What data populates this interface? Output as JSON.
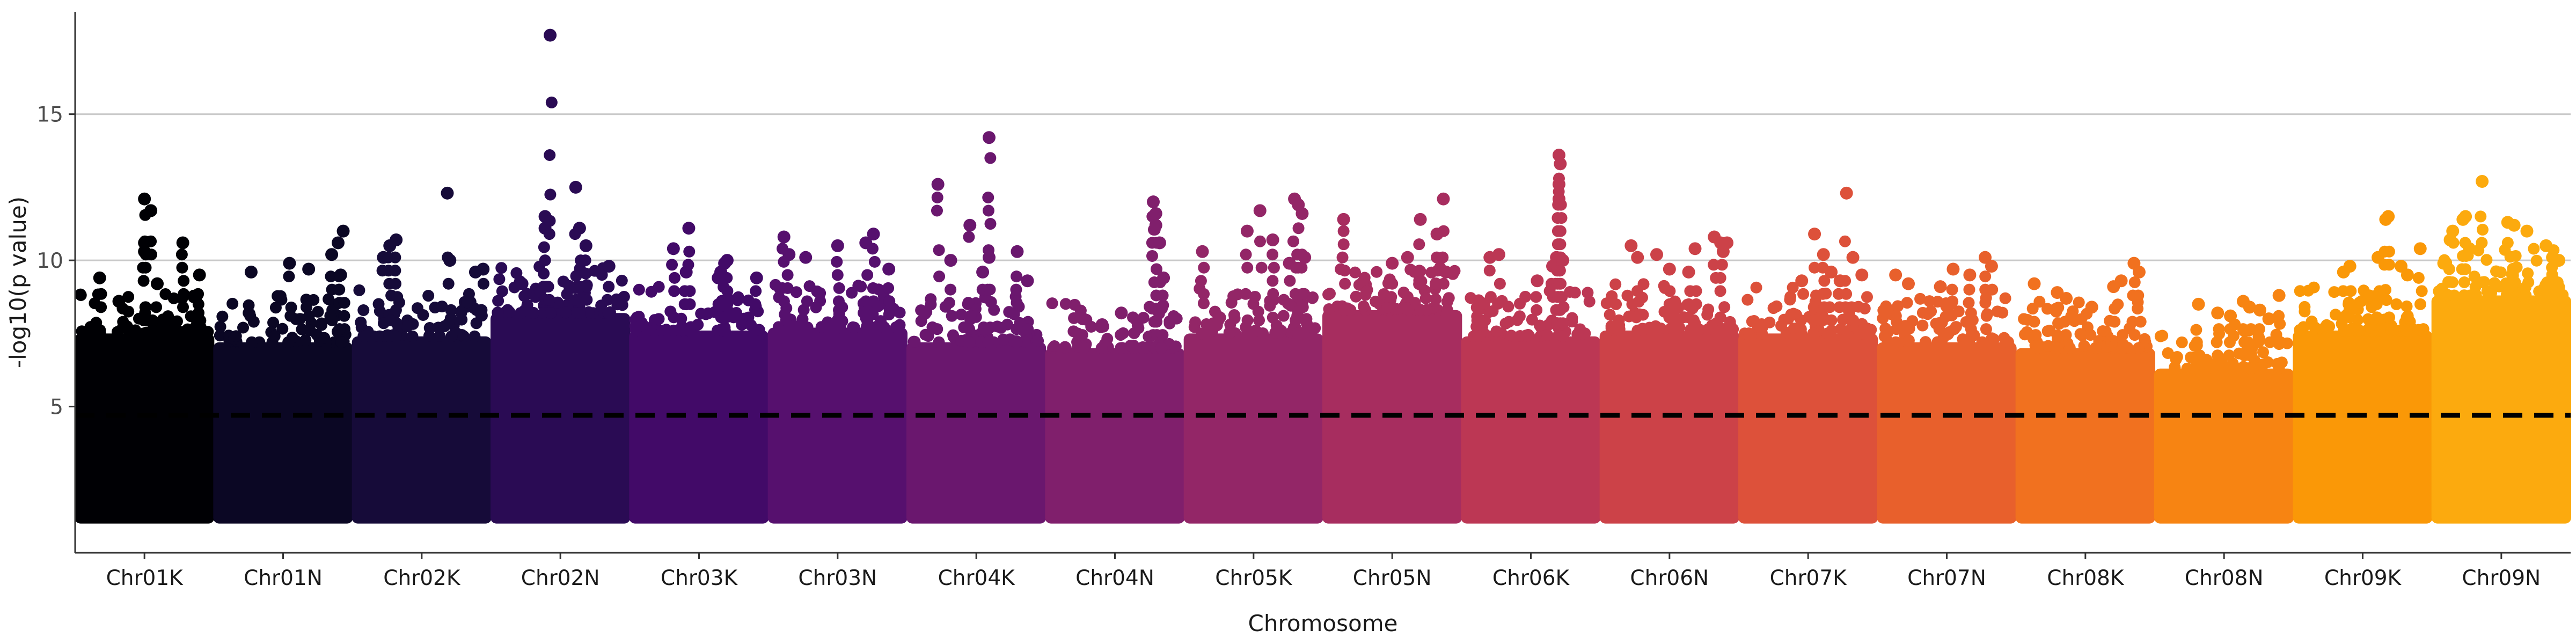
{
  "chart_data": {
    "type": "scatter",
    "title": "",
    "xlabel": "Chromosome",
    "ylabel": "-log10(p value)",
    "ylim": [
      0,
      18.5
    ],
    "yticks": [
      5,
      10,
      15
    ],
    "grid": "horizontal major",
    "legend": "none",
    "threshold": 4.7,
    "floor": 1.2,
    "categories": [
      "Chr01K",
      "Chr01N",
      "Chr02K",
      "Chr02N",
      "Chr03K",
      "Chr03N",
      "Chr04K",
      "Chr04N",
      "Chr05K",
      "Chr05N",
      "Chr06K",
      "Chr06N",
      "Chr07K",
      "Chr07N",
      "Chr08K",
      "Chr08N",
      "Chr09K",
      "Chr09N"
    ],
    "colors": [
      "#000004",
      "#0b0724",
      "#160b39",
      "#2a0b54",
      "#420a68",
      "#56106e",
      "#6a176e",
      "#801f6c",
      "#932667",
      "#a72d5f",
      "#bc3754",
      "#cc4248",
      "#dd513a",
      "#e8602c",
      "#f1711f",
      "#f78412",
      "#fa9807",
      "#fcaa0e"
    ],
    "series": [
      {
        "name": "Chr01K",
        "dense_top": 7.5,
        "peaks": [
          [
            0.15,
            9.4
          ],
          [
            0.3,
            8.6
          ],
          [
            0.5,
            10.6
          ],
          [
            0.5,
            10.3
          ],
          [
            0.5,
            12.1
          ],
          [
            0.55,
            11.7
          ],
          [
            0.6,
            9.2
          ],
          [
            0.8,
            10.6
          ],
          [
            0.93,
            9.5
          ]
        ]
      },
      {
        "name": "Chr01N",
        "dense_top": 7.2,
        "peaks": [
          [
            0.25,
            9.6
          ],
          [
            0.55,
            9.9
          ],
          [
            0.7,
            9.7
          ],
          [
            0.88,
            10.2
          ],
          [
            0.93,
            10.6
          ],
          [
            0.97,
            11.0
          ],
          [
            0.95,
            9.5
          ]
        ]
      },
      {
        "name": "Chr02K",
        "dense_top": 7.4,
        "peaks": [
          [
            0.2,
            10.1
          ],
          [
            0.25,
            10.5
          ],
          [
            0.3,
            10.7
          ],
          [
            0.7,
            12.3
          ],
          [
            0.72,
            10.0
          ],
          [
            0.92,
            9.6
          ],
          [
            0.98,
            9.7
          ]
        ]
      },
      {
        "name": "Chr02N",
        "dense_top": 8.2,
        "peaks": [
          [
            0.2,
            9.2
          ],
          [
            0.38,
            11.5
          ],
          [
            0.38,
            11.1
          ],
          [
            0.42,
            17.7
          ],
          [
            0.62,
            12.5
          ],
          [
            0.65,
            11.1
          ],
          [
            0.7,
            10.5
          ],
          [
            0.88,
            9.8
          ]
        ]
      },
      {
        "name": "Chr03K",
        "dense_top": 7.6,
        "peaks": [
          [
            0.3,
            10.4
          ],
          [
            0.4,
            9.6
          ],
          [
            0.42,
            11.1
          ],
          [
            0.65,
            9.4
          ],
          [
            0.67,
            9.6
          ],
          [
            0.7,
            9.9
          ],
          [
            0.72,
            10.0
          ],
          [
            0.95,
            9.4
          ]
        ]
      },
      {
        "name": "Chr03N",
        "dense_top": 7.7,
        "peaks": [
          [
            0.08,
            10.8
          ],
          [
            0.12,
            10.2
          ],
          [
            0.25,
            10.1
          ],
          [
            0.5,
            10.5
          ],
          [
            0.72,
            10.6
          ],
          [
            0.78,
            10.9
          ],
          [
            0.9,
            9.7
          ]
        ]
      },
      {
        "name": "Chr04K",
        "dense_top": 7.2,
        "peaks": [
          [
            0.2,
            12.6
          ],
          [
            0.3,
            10.0
          ],
          [
            0.45,
            11.2
          ],
          [
            0.55,
            9.6
          ],
          [
            0.6,
            10.1
          ],
          [
            0.6,
            14.2
          ],
          [
            0.82,
            10.3
          ],
          [
            0.9,
            9.3
          ]
        ]
      },
      {
        "name": "Chr04N",
        "dense_top": 7.0,
        "peaks": [
          [
            0.25,
            8.0
          ],
          [
            0.4,
            7.8
          ],
          [
            0.55,
            8.2
          ],
          [
            0.8,
            12.0
          ],
          [
            0.82,
            11.6
          ],
          [
            0.82,
            11.2
          ],
          [
            0.85,
            10.6
          ],
          [
            0.88,
            9.4
          ]
        ]
      },
      {
        "name": "Chr05K",
        "dense_top": 7.5,
        "peaks": [
          [
            0.1,
            10.3
          ],
          [
            0.45,
            11.0
          ],
          [
            0.55,
            11.7
          ],
          [
            0.65,
            10.7
          ],
          [
            0.78,
            9.9
          ],
          [
            0.82,
            12.1
          ],
          [
            0.85,
            11.9
          ],
          [
            0.88,
            11.6
          ],
          [
            0.9,
            10.1
          ]
        ]
      },
      {
        "name": "Chr05N",
        "dense_top": 8.3,
        "peaks": [
          [
            0.12,
            11.4
          ],
          [
            0.5,
            9.9
          ],
          [
            0.62,
            10.1
          ],
          [
            0.72,
            11.4
          ],
          [
            0.85,
            10.9
          ],
          [
            0.9,
            12.1
          ],
          [
            0.92,
            9.6
          ]
        ]
      },
      {
        "name": "Chr06K",
        "dense_top": 7.4,
        "peaks": [
          [
            0.18,
            10.1
          ],
          [
            0.25,
            10.2
          ],
          [
            0.55,
            9.3
          ],
          [
            0.67,
            9.8
          ],
          [
            0.7,
            10.1
          ],
          [
            0.72,
            12.1
          ],
          [
            0.72,
            12.6
          ],
          [
            0.73,
            13.3
          ],
          [
            0.72,
            13.6
          ],
          [
            0.75,
            10.0
          ]
        ]
      },
      {
        "name": "Chr06N",
        "dense_top": 7.6,
        "peaks": [
          [
            0.2,
            10.5
          ],
          [
            0.25,
            10.1
          ],
          [
            0.4,
            10.2
          ],
          [
            0.5,
            9.7
          ],
          [
            0.65,
            9.6
          ],
          [
            0.7,
            10.4
          ],
          [
            0.85,
            10.8
          ],
          [
            0.9,
            10.6
          ],
          [
            0.92,
            10.3
          ],
          [
            0.95,
            10.6
          ]
        ]
      },
      {
        "name": "Chr07K",
        "dense_top": 7.5,
        "peaks": [
          [
            0.45,
            9.3
          ],
          [
            0.55,
            10.9
          ],
          [
            0.62,
            10.2
          ],
          [
            0.68,
            9.6
          ],
          [
            0.75,
            9.3
          ],
          [
            0.8,
            12.3
          ],
          [
            0.85,
            10.1
          ],
          [
            0.92,
            9.5
          ]
        ]
      },
      {
        "name": "Chr07N",
        "dense_top": 7.2,
        "peaks": [
          [
            0.1,
            9.5
          ],
          [
            0.2,
            9.2
          ],
          [
            0.45,
            9.1
          ],
          [
            0.55,
            9.7
          ],
          [
            0.68,
            9.5
          ],
          [
            0.8,
            10.1
          ],
          [
            0.85,
            9.8
          ]
        ]
      },
      {
        "name": "Chr08K",
        "dense_top": 7.0,
        "peaks": [
          [
            0.1,
            9.2
          ],
          [
            0.28,
            8.9
          ],
          [
            0.35,
            8.7
          ],
          [
            0.55,
            8.4
          ],
          [
            0.72,
            9.1
          ],
          [
            0.78,
            9.3
          ],
          [
            0.88,
            9.9
          ],
          [
            0.92,
            9.6
          ]
        ]
      },
      {
        "name": "Chr08N",
        "dense_top": 6.3,
        "peaks": [
          [
            0.3,
            8.5
          ],
          [
            0.45,
            8.2
          ],
          [
            0.55,
            8.1
          ],
          [
            0.65,
            8.6
          ],
          [
            0.7,
            8.4
          ],
          [
            0.78,
            8.3
          ],
          [
            0.85,
            8.0
          ],
          [
            0.93,
            8.8
          ]
        ]
      },
      {
        "name": "Chr09K",
        "dense_top": 7.6,
        "peaks": [
          [
            0.35,
            9.6
          ],
          [
            0.4,
            9.8
          ],
          [
            0.62,
            10.1
          ],
          [
            0.68,
            11.4
          ],
          [
            0.7,
            11.5
          ],
          [
            0.8,
            9.8
          ],
          [
            0.85,
            9.5
          ],
          [
            0.95,
            10.4
          ]
        ]
      },
      {
        "name": "Chr09N",
        "dense_top": 8.8,
        "peaks": [
          [
            0.05,
            9.9
          ],
          [
            0.1,
            10.7
          ],
          [
            0.12,
            11.0
          ],
          [
            0.2,
            11.4
          ],
          [
            0.22,
            11.5
          ],
          [
            0.25,
            10.4
          ],
          [
            0.35,
            12.7
          ],
          [
            0.55,
            11.3
          ],
          [
            0.6,
            11.2
          ],
          [
            0.7,
            11.0
          ],
          [
            0.85,
            10.5
          ],
          [
            0.9,
            10.1
          ],
          [
            0.95,
            10.0
          ]
        ]
      }
    ]
  }
}
